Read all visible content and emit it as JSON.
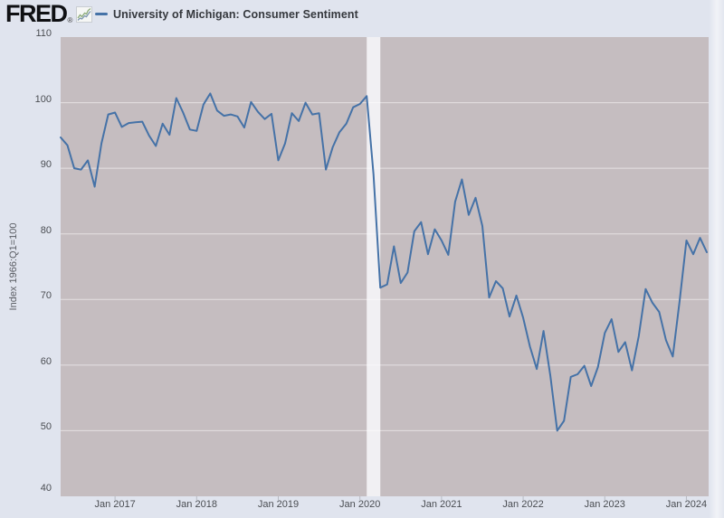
{
  "header": {
    "logo_text": "FRED",
    "registered": "®",
    "legend": {
      "label": "University of Michigan: Consumer Sentiment",
      "series_color": "#4572a7"
    }
  },
  "chart_data": {
    "type": "line",
    "title": "University of Michigan: Consumer Sentiment",
    "xlabel": "",
    "ylabel": "Index 1966:Q1=100",
    "ylim": [
      40,
      110
    ],
    "grid": "horizontal-only",
    "legend_position": "top-left",
    "y_ticks": [
      40,
      50,
      60,
      70,
      80,
      90,
      100,
      110
    ],
    "x_ticks": [
      {
        "label": "Jan 2017",
        "month": "2017-01"
      },
      {
        "label": "Jan 2018",
        "month": "2018-01"
      },
      {
        "label": "Jan 2019",
        "month": "2019-01"
      },
      {
        "label": "Jan 2020",
        "month": "2020-01"
      },
      {
        "label": "Jan 2021",
        "month": "2021-01"
      },
      {
        "label": "Jan 2022",
        "month": "2022-01"
      },
      {
        "label": "Jan 2023",
        "month": "2023-01"
      },
      {
        "label": "Jan 2024",
        "month": "2024-01"
      }
    ],
    "recession_bands": [
      {
        "start": "2020-02",
        "end": "2020-04"
      }
    ],
    "colors": {
      "page_background": "#e0e4ee",
      "plot_background": "#c5bdc0",
      "recession_band": "#f1f0f3",
      "gridline": "#ffffff",
      "tick_mark": "#b7bac3",
      "series_line": "#4572a7"
    },
    "series": [
      {
        "name": "University of Michigan: Consumer Sentiment",
        "color": "#4572a7",
        "x": [
          "2016-05",
          "2016-06",
          "2016-07",
          "2016-08",
          "2016-09",
          "2016-10",
          "2016-11",
          "2016-12",
          "2017-01",
          "2017-02",
          "2017-03",
          "2017-04",
          "2017-05",
          "2017-06",
          "2017-07",
          "2017-08",
          "2017-09",
          "2017-10",
          "2017-11",
          "2017-12",
          "2018-01",
          "2018-02",
          "2018-03",
          "2018-04",
          "2018-05",
          "2018-06",
          "2018-07",
          "2018-08",
          "2018-09",
          "2018-10",
          "2018-11",
          "2018-12",
          "2019-01",
          "2019-02",
          "2019-03",
          "2019-04",
          "2019-05",
          "2019-06",
          "2019-07",
          "2019-08",
          "2019-09",
          "2019-10",
          "2019-11",
          "2019-12",
          "2020-01",
          "2020-02",
          "2020-03",
          "2020-04",
          "2020-05",
          "2020-06",
          "2020-07",
          "2020-08",
          "2020-09",
          "2020-10",
          "2020-11",
          "2020-12",
          "2021-01",
          "2021-02",
          "2021-03",
          "2021-04",
          "2021-05",
          "2021-06",
          "2021-07",
          "2021-08",
          "2021-09",
          "2021-10",
          "2021-11",
          "2021-12",
          "2022-01",
          "2022-02",
          "2022-03",
          "2022-04",
          "2022-05",
          "2022-06",
          "2022-07",
          "2022-08",
          "2022-09",
          "2022-10",
          "2022-11",
          "2022-12",
          "2023-01",
          "2023-02",
          "2023-03",
          "2023-04",
          "2023-05",
          "2023-06",
          "2023-07",
          "2023-08",
          "2023-09",
          "2023-10",
          "2023-11",
          "2023-12",
          "2024-01",
          "2024-02",
          "2024-03",
          "2024-04"
        ],
        "values": [
          94.7,
          93.5,
          90.0,
          89.8,
          91.2,
          87.2,
          93.8,
          98.2,
          98.5,
          96.3,
          96.9,
          97.0,
          97.1,
          95.0,
          93.4,
          96.8,
          95.1,
          100.7,
          98.5,
          95.9,
          95.7,
          99.7,
          101.4,
          98.8,
          98.0,
          98.2,
          97.9,
          96.2,
          100.1,
          98.6,
          97.5,
          98.3,
          91.2,
          93.8,
          98.4,
          97.2,
          100.0,
          98.2,
          98.4,
          89.8,
          93.2,
          95.5,
          96.8,
          99.3,
          99.8,
          101.0,
          89.1,
          71.8,
          72.3,
          78.1,
          72.5,
          74.1,
          80.4,
          81.8,
          76.9,
          80.7,
          79.0,
          76.8,
          84.9,
          88.3,
          82.9,
          85.5,
          81.2,
          70.3,
          72.8,
          71.7,
          67.4,
          70.6,
          67.2,
          62.8,
          59.4,
          65.2,
          58.4,
          50.0,
          51.5,
          58.2,
          58.6,
          59.9,
          56.8,
          59.7,
          64.9,
          67.0,
          62.0,
          63.5,
          59.2,
          64.4,
          71.6,
          69.5,
          68.1,
          63.8,
          61.3,
          69.7,
          79.0,
          76.9,
          79.4,
          77.2
        ]
      }
    ]
  }
}
